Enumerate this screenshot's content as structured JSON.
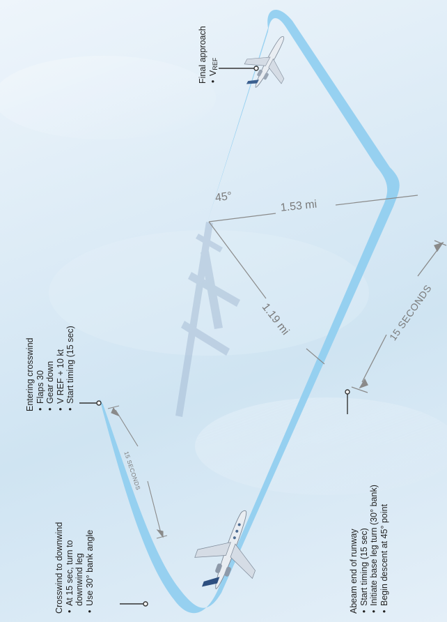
{
  "callouts": {
    "final_approach": {
      "title": "Final approach",
      "items": [
        "V",
        "REF"
      ]
    },
    "entering_crosswind": {
      "title": "Entering crosswind",
      "items": [
        "Flaps 30",
        "Gear down",
        "V REF + 10 kt",
        "Start timing (15 sec)"
      ]
    },
    "crosswind_to_downwind": {
      "title": "Crosswind to downwind",
      "items": [
        "At 15 sec, turn to",
        "downwind leg",
        "Use 30° bank angle"
      ]
    },
    "abeam_end": {
      "title": "Abeam end of runway",
      "items": [
        "Start timing (15 sec)",
        "Initiate base leg turn (30° bank)",
        "Begin descent at 45° point"
      ]
    }
  },
  "dimensions": {
    "angle": "45°",
    "distance_1": "1.53 mi",
    "distance_2": "1.19 mi",
    "timing_big": "15 SECONDS",
    "timing_small": "15 SECONDS"
  },
  "colors": {
    "path": "#8ecdef",
    "path_dark": "#6bbce8",
    "runway": "#9db4cf",
    "dim_line": "#8a8a8a",
    "leader": "#333333"
  }
}
